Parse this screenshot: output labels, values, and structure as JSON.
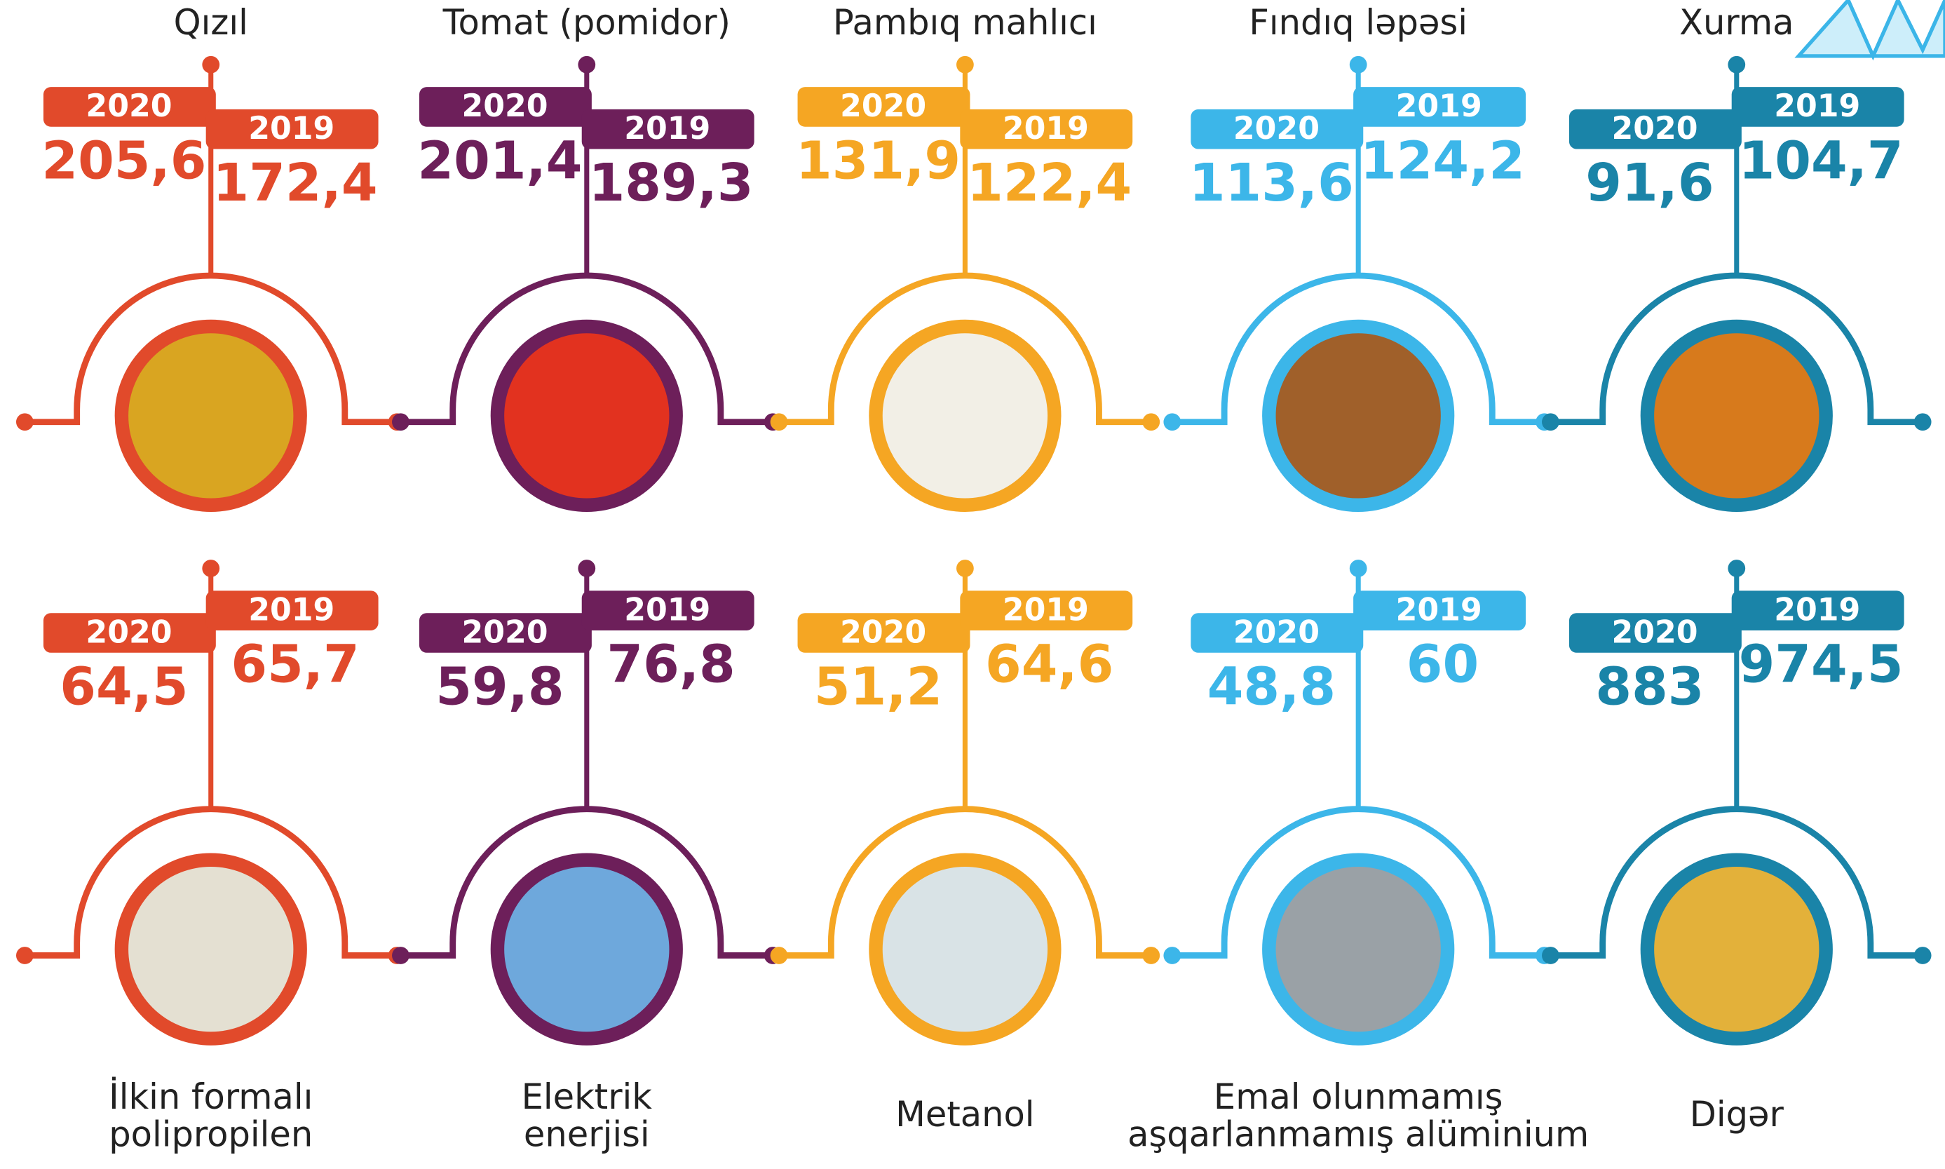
{
  "years": [
    "2020",
    "2019"
  ],
  "items": [
    {
      "name": [
        "Qızıl"
      ],
      "values": [
        "205,6",
        "172,4"
      ]
    },
    {
      "name": [
        "Tomat (pomidor)"
      ],
      "values": [
        "201,4",
        "189,3"
      ]
    },
    {
      "name": [
        "Pambıq mahlıcı"
      ],
      "values": [
        "131,9",
        "122,4"
      ]
    },
    {
      "name": [
        "Fındıq ləpəsi"
      ],
      "values": [
        "113,6",
        "124,2"
      ]
    },
    {
      "name": [
        "Xurma"
      ],
      "values": [
        "91,6",
        "104,7"
      ]
    },
    {
      "name": [
        "İlkin formalı",
        "polipropilen"
      ],
      "values": [
        "64,5",
        "65,7"
      ]
    },
    {
      "name": [
        "Elektrik",
        "enerjisi"
      ],
      "values": [
        "59,8",
        "76,8"
      ]
    },
    {
      "name": [
        "Metanol"
      ],
      "values": [
        "51,2",
        "64,6"
      ]
    },
    {
      "name": [
        "Emal olunmamış",
        "aşqarlanmamış alüminium"
      ],
      "values": [
        "48,8",
        "60"
      ]
    },
    {
      "name": [
        "Digər"
      ],
      "values": [
        "883",
        "974,5"
      ]
    }
  ]
}
